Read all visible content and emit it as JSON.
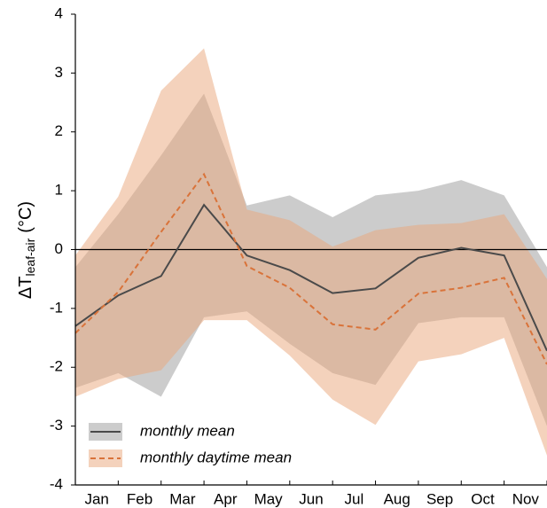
{
  "chart_data": {
    "type": "line",
    "y_label": {
      "main": "ΔT",
      "sub": "leaf-air",
      "unit": "(°C)"
    },
    "x": [
      0,
      1,
      2,
      3,
      4,
      5,
      6,
      7,
      8,
      9,
      10,
      11
    ],
    "xlim": [
      0,
      11
    ],
    "xticks": [
      {
        "value": 0.5,
        "label": "Jan"
      },
      {
        "value": 1.5,
        "label": "Feb"
      },
      {
        "value": 2.5,
        "label": "Mar"
      },
      {
        "value": 3.5,
        "label": "Apr"
      },
      {
        "value": 4.5,
        "label": "May"
      },
      {
        "value": 5.5,
        "label": "Jun"
      },
      {
        "value": 6.5,
        "label": "Jul"
      },
      {
        "value": 7.5,
        "label": "Aug"
      },
      {
        "value": 8.5,
        "label": "Sep"
      },
      {
        "value": 9.5,
        "label": "Oct"
      },
      {
        "value": 10.5,
        "label": "Nov"
      }
    ],
    "ylim": [
      -4,
      4
    ],
    "yticks": [
      -4,
      -3,
      -2,
      -1,
      0,
      1,
      2,
      3,
      4
    ],
    "hline": 0,
    "legend_position": "lower left",
    "series": [
      {
        "name": "monthly mean",
        "color": "#4a4a4a",
        "band_color": "#9a9a9a",
        "dashed": false,
        "values": [
          -1.3,
          -0.78,
          -0.45,
          0.76,
          -0.1,
          -0.35,
          -0.74,
          -0.66,
          -0.14,
          0.03,
          -0.1,
          -1.72
        ],
        "upper": [
          -0.3,
          0.6,
          1.6,
          2.65,
          0.75,
          0.92,
          0.55,
          0.92,
          1.0,
          1.18,
          0.92,
          -0.3
        ],
        "lower": [
          -2.35,
          -2.1,
          -2.5,
          -1.15,
          -1.05,
          -1.6,
          -2.1,
          -2.3,
          -1.25,
          -1.15,
          -1.15,
          -3.0
        ]
      },
      {
        "name": "monthly daytime mean",
        "color": "#d9733a",
        "band_color": "#eaa67a",
        "dashed": true,
        "values": [
          -1.42,
          -0.72,
          0.3,
          1.28,
          -0.28,
          -0.65,
          -1.27,
          -1.36,
          -0.75,
          -0.65,
          -0.48,
          -1.95
        ],
        "upper": [
          -0.1,
          0.9,
          2.7,
          3.42,
          0.68,
          0.5,
          0.05,
          0.33,
          0.42,
          0.45,
          0.6,
          -0.5
        ],
        "lower": [
          -2.5,
          -2.2,
          -2.05,
          -1.2,
          -1.2,
          -1.8,
          -2.55,
          -2.98,
          -1.9,
          -1.78,
          -1.5,
          -3.5
        ]
      }
    ]
  }
}
